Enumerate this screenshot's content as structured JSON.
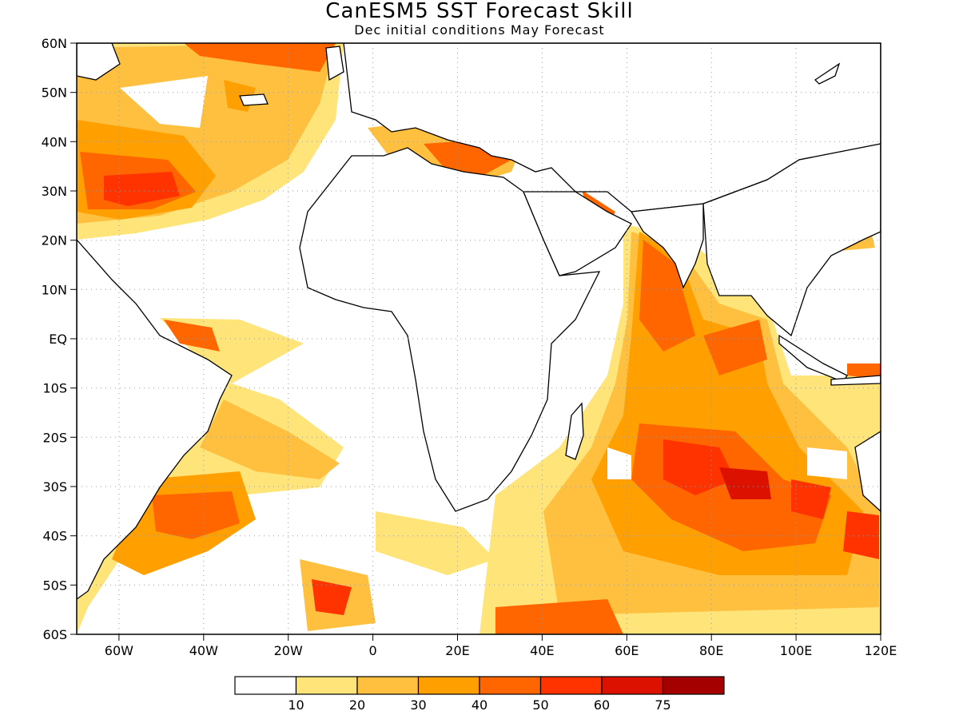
{
  "title": "CanESM5 SST Forecast Skill",
  "subtitle": "Dec initial conditions   May Forecast",
  "map": {
    "lon_range": [
      -70,
      120
    ],
    "lat_range": [
      -60,
      60
    ],
    "lat_ticks": [
      "60N",
      "50N",
      "40N",
      "30N",
      "20N",
      "10N",
      "EQ",
      "10S",
      "20S",
      "30S",
      "40S",
      "50S",
      "60S"
    ],
    "lon_ticks": [
      "60W",
      "40W",
      "20W",
      "0",
      "20E",
      "40E",
      "60E",
      "80E",
      "100E",
      "120E"
    ],
    "gridlines": true
  },
  "colorbar": {
    "colors": [
      "#ffffff",
      "#ffe47a",
      "#ffc040",
      "#ffa000",
      "#ff6600",
      "#ff3300",
      "#dd1100",
      "#a50000"
    ],
    "labels": [
      "10",
      "20",
      "30",
      "40",
      "50",
      "60",
      "75"
    ]
  }
}
